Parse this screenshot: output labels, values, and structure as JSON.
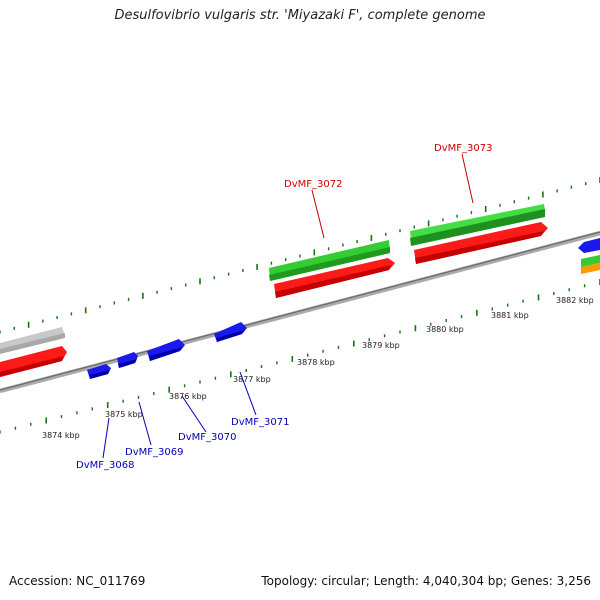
{
  "title": "Desulfovibrio vulgaris str. 'Miyazaki F', complete genome",
  "footer": {
    "accession": "Accession: NC_011769",
    "summary": "Topology: circular; Length: 4,040,304 bp; Genes: 3,256"
  },
  "ruler": {
    "kbp_labels": [
      "3874 kbp",
      "3875 kbp",
      "3876 kbp",
      "3877 kbp",
      "3878 kbp",
      "3879 kbp",
      "3880 kbp",
      "3881 kbp",
      "3882 kbp"
    ]
  },
  "genes": {
    "top_labels": [
      "DvMF_3072",
      "DvMF_3073"
    ],
    "bottom_labels": [
      "DvMF_3068",
      "DvMF_3069",
      "DvMF_3070",
      "DvMF_3071"
    ]
  },
  "colors": {
    "red_feature": "#ff1a1a",
    "green_feature": "#33cc33",
    "dark_green_feature": "#1f8f1f",
    "blue_feature": "#1a1aee",
    "grey_feature": "#c0c0c0",
    "orange_feature": "#ff9900",
    "backbone": "#8a8a8a",
    "tick_green": "#117711",
    "label_red": "#cc0000",
    "label_blue": "#0000bb"
  }
}
